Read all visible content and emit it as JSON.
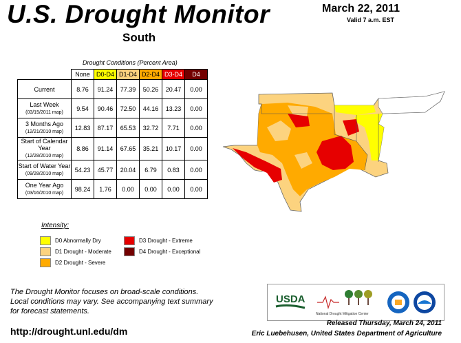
{
  "header": {
    "title": "U.S. Drought Monitor",
    "region": "South",
    "date": "March 22, 2011",
    "valid": "Valid 7 a.m. EST"
  },
  "table": {
    "caption": "Drought Conditions (Percent Area)",
    "columns": [
      "None",
      "D0-D4",
      "D1-D4",
      "D2-D4",
      "D3-D4",
      "D4"
    ],
    "rows": [
      {
        "label": "Current",
        "sub": "",
        "values": [
          "8.76",
          "91.24",
          "77.39",
          "50.26",
          "20.47",
          "0.00"
        ]
      },
      {
        "label": "Last Week",
        "sub": "(03/15/2011 map)",
        "values": [
          "9.54",
          "90.46",
          "72.50",
          "44.16",
          "13.23",
          "0.00"
        ]
      },
      {
        "label": "3 Months Ago",
        "sub": "(12/21/2010 map)",
        "values": [
          "12.83",
          "87.17",
          "65.53",
          "32.72",
          "7.71",
          "0.00"
        ]
      },
      {
        "label": "Start of Calendar Year",
        "sub": "(12/28/2010 map)",
        "values": [
          "8.86",
          "91.14",
          "67.65",
          "35.21",
          "10.17",
          "0.00"
        ]
      },
      {
        "label": "Start of Water Year",
        "sub": "(09/28/2010 map)",
        "values": [
          "54.23",
          "45.77",
          "20.04",
          "6.79",
          "0.83",
          "0.00"
        ]
      },
      {
        "label": "One Year Ago",
        "sub": "(03/16/2010 map)",
        "values": [
          "98.24",
          "1.76",
          "0.00",
          "0.00",
          "0.00",
          "0.00"
        ]
      }
    ]
  },
  "legend": {
    "title": "Intensity:",
    "items": [
      {
        "label": "D0 Abnormally Dry",
        "color": "#ffff00"
      },
      {
        "label": "D1 Drought - Moderate",
        "color": "#fcd37f"
      },
      {
        "label": "D2 Drought - Severe",
        "color": "#ffaa00"
      },
      {
        "label": "D3 Drought - Extreme",
        "color": "#e60000"
      },
      {
        "label": "D4 Drought - Exceptional",
        "color": "#730000"
      }
    ]
  },
  "footer": {
    "note_1": "The Drought Monitor focuses on broad-scale conditions.",
    "note_2": "Local conditions may vary. See accompanying text summary",
    "note_3": "for forecast statements.",
    "url": "http://drought.unl.edu/dm",
    "released": "Released Thursday, March 24, 2011",
    "author": "Eric Luebehusen, United States Department of Agriculture"
  },
  "logos": {
    "usda": "USDA",
    "ndmc": "National Drought Mitigation Center"
  }
}
